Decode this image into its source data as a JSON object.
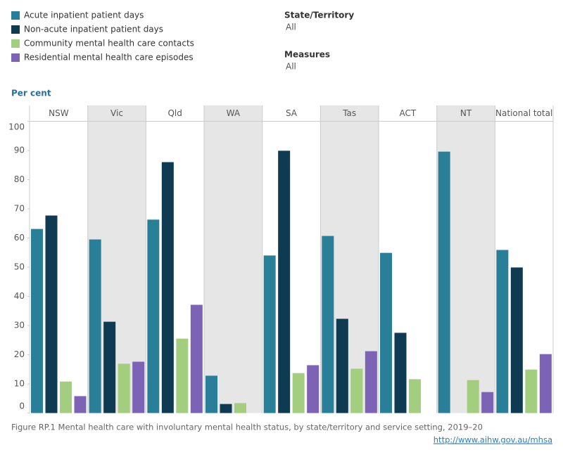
{
  "filters": [
    {
      "title": "State/Territory",
      "value": "All"
    },
    {
      "title": "Measures",
      "value": "All"
    }
  ],
  "caption": "Figure RP.1 Mental health care with involuntary mental health status, by state/territory and service setting, 2019–20",
  "source_url": "http://www.aihw.gov.au/mhsa",
  "chart_data": {
    "type": "bar",
    "y_label": "Per cent",
    "categories": [
      "NSW",
      "Vic",
      "Qld",
      "WA",
      "SA",
      "Tas",
      "ACT",
      "NT",
      "National total"
    ],
    "series": [
      {
        "name": "Acute inpatient patient days",
        "color": "#2a7f98",
        "values": [
          63.1,
          59.5,
          66.3,
          12.8,
          54,
          60.7,
          54.9,
          89.6,
          55.9
        ]
      },
      {
        "name": "Non-acute inpatient patient days",
        "color": "#0e3a52",
        "values": [
          67.7,
          31.3,
          86,
          3.1,
          89.9,
          32.3,
          27.5,
          null,
          49.9
        ]
      },
      {
        "name": "Community mental health care contacts",
        "color": "#a3cd7f",
        "values": [
          10.8,
          16.9,
          25.5,
          3.4,
          13.7,
          15.2,
          11.6,
          11.3,
          14.9
        ]
      },
      {
        "name": "Residential mental health care episodes",
        "color": "#7d63b5",
        "values": [
          5.8,
          17.6,
          37.1,
          null,
          16.4,
          21.2,
          null,
          7.2,
          20.2
        ]
      }
    ],
    "ylim": [
      0,
      100
    ],
    "yticks": [
      0,
      10,
      20,
      30,
      40,
      50,
      60,
      70,
      80,
      90,
      100
    ]
  }
}
